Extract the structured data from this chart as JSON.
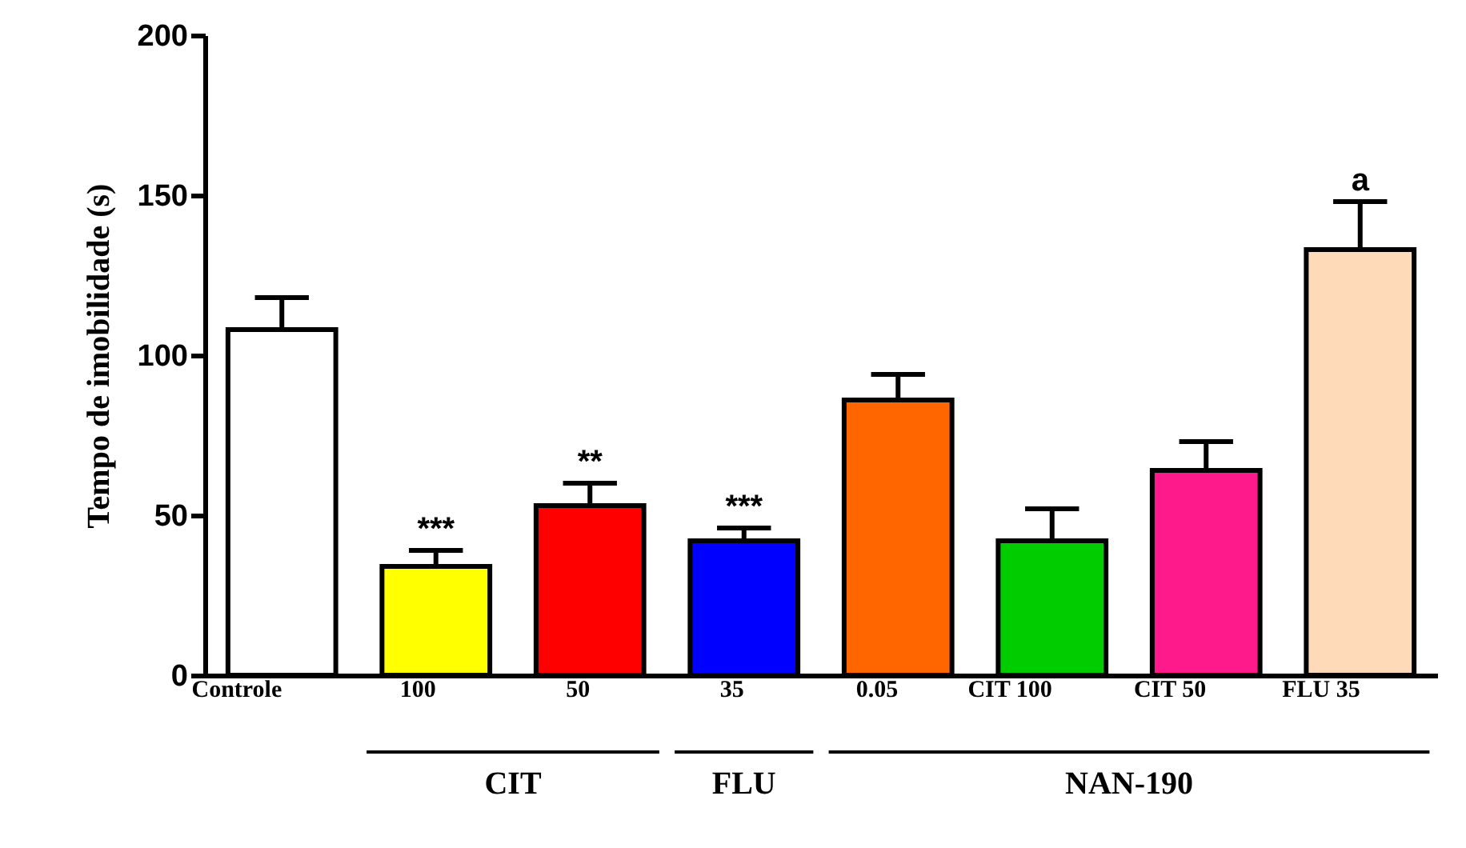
{
  "chart_data": {
    "type": "bar",
    "ylabel": "Tempo de imobilidade (s)",
    "categories": [
      "Controle",
      "100",
      "50",
      "35",
      "0.05",
      "CIT 100",
      "CIT 50",
      "FLU 35"
    ],
    "values": [
      108,
      34,
      53,
      42,
      86,
      42,
      64,
      133
    ],
    "errors": [
      10,
      5,
      7,
      4,
      8,
      10,
      9,
      15
    ],
    "colors": [
      "#ffffff",
      "#ffff00",
      "#ff0000",
      "#0000ff",
      "#ff6600",
      "#00cc00",
      "#ff1a8c",
      "#ffdab9"
    ],
    "ylim": [
      0,
      200
    ],
    "yticks": [
      0,
      50,
      100,
      150,
      200
    ],
    "grid": false,
    "annotations": [
      "***",
      "**",
      "***",
      "a",
      "CIT",
      "FLU",
      "NAN-190"
    ]
  }
}
